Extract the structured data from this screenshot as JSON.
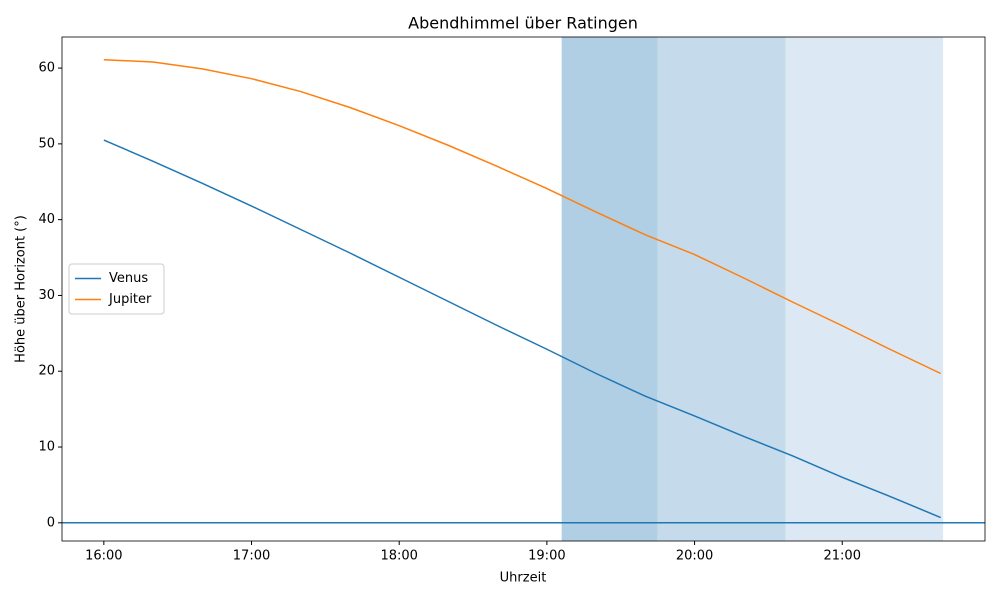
{
  "chart_data": {
    "type": "line",
    "title": "Abendhimmel über Ratingen",
    "xlabel": "Uhrzeit",
    "ylabel": "Höhe über Horizont (°)",
    "x": [
      "16:00",
      "16:20",
      "16:40",
      "17:00",
      "17:20",
      "17:40",
      "18:00",
      "18:20",
      "18:40",
      "19:00",
      "19:20",
      "19:40",
      "20:00",
      "20:20",
      "20:40",
      "21:00",
      "21:20",
      "21:40"
    ],
    "series": [
      {
        "name": "Venus",
        "color": "#1f77b4",
        "values": [
          50.5,
          47.7,
          44.8,
          41.8,
          38.7,
          35.6,
          32.4,
          29.2,
          26.0,
          22.9,
          19.7,
          16.7,
          14.1,
          11.4,
          8.8,
          6.0,
          3.4,
          0.7
        ]
      },
      {
        "name": "Jupiter",
        "color": "#ff7f0e",
        "values": [
          61.1,
          60.8,
          59.9,
          58.6,
          56.9,
          54.8,
          52.4,
          49.8,
          47.0,
          44.1,
          41.0,
          38.0,
          35.4,
          32.3,
          29.1,
          26.0,
          22.8,
          19.7
        ]
      }
    ],
    "hline": {
      "value": 0,
      "color": "#1f77b4"
    },
    "spans": [
      {
        "start": "19:06",
        "end": "19:45",
        "color": "#b0cfe4"
      },
      {
        "start": "19:45",
        "end": "20:37",
        "color": "#c5dbec"
      },
      {
        "start": "20:37",
        "end": "21:41",
        "color": "#dce8f3"
      }
    ],
    "xlim": [
      "15:43",
      "21:58"
    ],
    "xticks": [
      "16:00",
      "17:00",
      "18:00",
      "19:00",
      "20:00",
      "21:00"
    ],
    "ylim": [
      -2.4,
      64.1
    ],
    "yticks": [
      0,
      10,
      20,
      30,
      40,
      50,
      60
    ],
    "legend": "center left",
    "grid": false
  }
}
